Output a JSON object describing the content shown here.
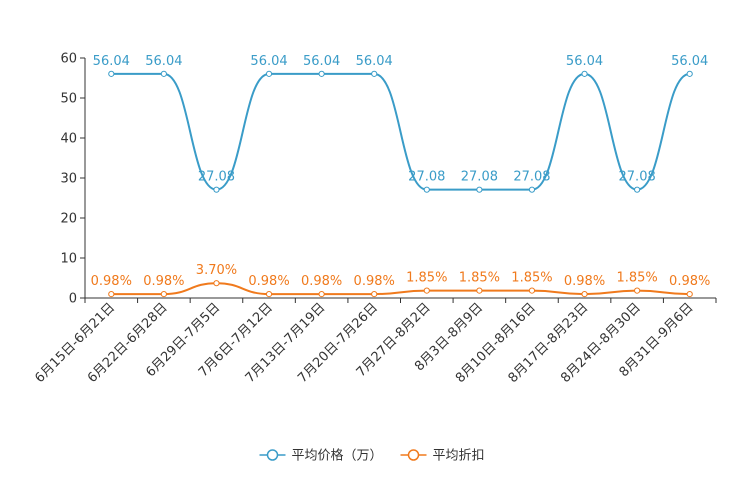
{
  "chart_data": {
    "type": "line",
    "title": "",
    "xlabel": "",
    "ylabel": "",
    "ylim": [
      0,
      60
    ],
    "yticks": [
      0,
      10,
      20,
      30,
      40,
      50,
      60
    ],
    "grid": false,
    "legend_position": "bottom-center",
    "categories": [
      "6月15日-6月21日",
      "6月22日-6月28日",
      "6月29日-7月5日",
      "7月6日-7月12日",
      "7月13日-7月19日",
      "7月20日-7月26日",
      "7月27日-8月2日",
      "8月3日-8月9日",
      "8月10日-8月16日",
      "8月17日-8月23日",
      "8月24日-8月30日",
      "8月31日-9月6日"
    ],
    "series": [
      {
        "name": "平均价格（万）",
        "color": "#3a9cc8",
        "values": [
          56.04,
          56.04,
          27.08,
          56.04,
          56.04,
          56.04,
          27.08,
          27.08,
          27.08,
          56.04,
          27.08,
          56.04
        ],
        "labels": [
          "56.04",
          "56.04",
          "27.08",
          "56.04",
          "56.04",
          "56.04",
          "27.08",
          "27.08",
          "27.08",
          "56.04",
          "27.08",
          "56.04"
        ]
      },
      {
        "name": "平均折扣",
        "color": "#f07a1d",
        "values": [
          0.98,
          0.98,
          3.7,
          0.98,
          0.98,
          0.98,
          1.85,
          1.85,
          1.85,
          0.98,
          1.85,
          0.98
        ],
        "labels": [
          "0.98%",
          "0.98%",
          "3.70%",
          "0.98%",
          "0.98%",
          "0.98%",
          "1.85%",
          "1.85%",
          "1.85%",
          "0.98%",
          "1.85%",
          "0.98%"
        ]
      }
    ]
  }
}
